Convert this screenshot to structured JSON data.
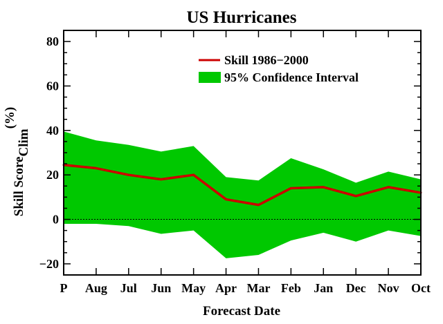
{
  "chart_data": {
    "type": "line",
    "title": "US Hurricanes",
    "xlabel": "Forecast Date",
    "ylabel": {
      "main": "Skill Score",
      "subscript": "Clim",
      "unit": "(%)"
    },
    "categories": [
      "P",
      "Aug",
      "Jul",
      "Jun",
      "May",
      "Apr",
      "Mar",
      "Feb",
      "Jan",
      "Dec",
      "Nov",
      "Oct"
    ],
    "ylim": [
      -25,
      85
    ],
    "yticks": [
      -20,
      0,
      20,
      40,
      60,
      80
    ],
    "ytick_labels": [
      "−20",
      "0",
      "20",
      "40",
      "60",
      "80"
    ],
    "zero_line": "dotted",
    "legend_position": "top-right",
    "series": [
      {
        "name": "Skill 1986−2000",
        "kind": "line",
        "color": "#cc0000",
        "values": [
          24.5,
          23,
          20,
          18,
          20,
          9,
          6.5,
          14,
          14.5,
          10.5,
          14.5,
          12
        ]
      },
      {
        "name": "95% Confidence Interval",
        "kind": "band",
        "color": "#00c800",
        "upper": [
          39.5,
          35.5,
          33.5,
          30.5,
          33,
          19,
          17.5,
          27.5,
          22.5,
          16.5,
          21.5,
          18
        ],
        "lower": [
          -2,
          -2,
          -3,
          -6.5,
          -5,
          -17.5,
          -16,
          -9.5,
          -6,
          -10,
          -5,
          -7.5
        ]
      }
    ]
  }
}
